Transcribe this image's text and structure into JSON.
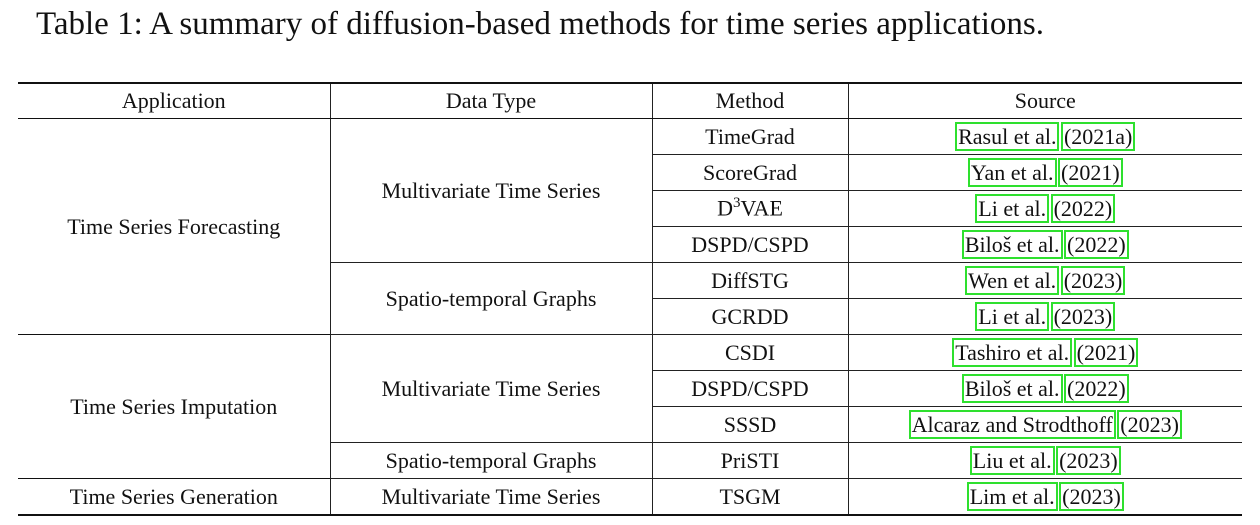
{
  "caption": "Table 1: A summary of diffusion-based methods for time series applications.",
  "table": {
    "header": [
      "Application",
      "Data Type",
      "Method",
      "Source"
    ],
    "groups": [
      {
        "application": "Time Series Forecasting",
        "data_types": [
          {
            "name": "Multivariate Time Series",
            "methods": [
              {
                "method": "TimeGrad",
                "author": "Rasul et al.",
                "year": "(2021a)"
              },
              {
                "method": "ScoreGrad",
                "author": "Yan et al.",
                "year": "(2021)"
              },
              {
                "method": {
                  "base": "D",
                  "sup": "3",
                  "rest": "VAE"
                },
                "author": "Li et al.",
                "year": "(2022)"
              },
              {
                "method": "DSPD/CSPD",
                "author": "Biloš et al.",
                "year": "(2022)"
              }
            ]
          },
          {
            "name": "Spatio-temporal Graphs",
            "methods": [
              {
                "method": "DiffSTG",
                "author": "Wen et al.",
                "year": "(2023)"
              },
              {
                "method": "GCRDD",
                "author": "Li et al.",
                "year": "(2023)"
              }
            ]
          }
        ]
      },
      {
        "application": "Time Series Imputation",
        "data_types": [
          {
            "name": "Multivariate Time Series",
            "methods": [
              {
                "method": "CSDI",
                "author": "Tashiro et al.",
                "year": "(2021)"
              },
              {
                "method": "DSPD/CSPD",
                "author": "Biloš et al.",
                "year": "(2022)"
              },
              {
                "method": "SSSD",
                "author": "Alcaraz and Strodthoff",
                "year": "(2023)"
              }
            ]
          },
          {
            "name": "Spatio-temporal Graphs",
            "methods": [
              {
                "method": "PriSTI",
                "author": "Liu et al.",
                "year": "(2023)"
              }
            ]
          }
        ]
      },
      {
        "application": "Time Series Generation",
        "data_types": [
          {
            "name": "Multivariate Time Series",
            "methods": [
              {
                "method": "TSGM",
                "author": "Lim et al.",
                "year": "(2023)"
              }
            ]
          }
        ]
      }
    ]
  }
}
